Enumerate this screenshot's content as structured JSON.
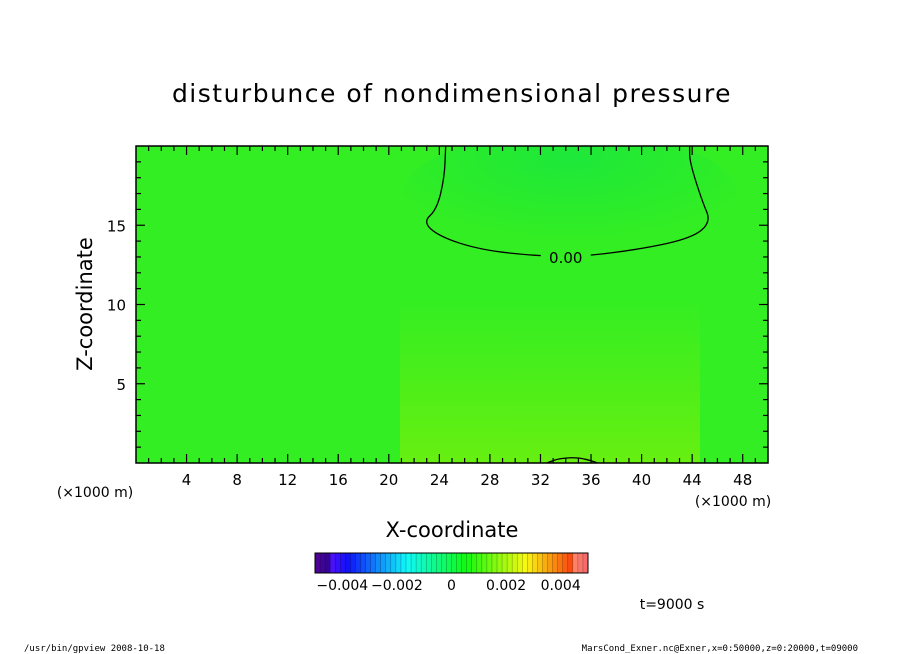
{
  "chart_data": {
    "type": "heatmap",
    "title": "disturbunce of nondimensional pressure",
    "xlabel": "X-coordinate",
    "ylabel": "Z-coordinate",
    "x_unit_left": "(×1000 m)",
    "x_unit_right": "(×1000 m)",
    "xlim": [
      0,
      50
    ],
    "ylim": [
      0,
      20
    ],
    "x_ticks": [
      4,
      8,
      12,
      16,
      20,
      24,
      28,
      32,
      36,
      40,
      44,
      48
    ],
    "y_ticks": [
      5,
      10,
      15
    ],
    "x_tick_labels": [
      "4",
      "8",
      "12",
      "16",
      "20",
      "24",
      "28",
      "32",
      "36",
      "40",
      "44",
      "48"
    ],
    "y_tick_labels": [
      "5",
      "10",
      "15"
    ],
    "contours": [
      {
        "level": 0.0,
        "label": "0.00",
        "path": [
          [
            24.5,
            20
          ],
          [
            24.4,
            18
          ],
          [
            23.8,
            16
          ],
          [
            22.7,
            15.2
          ],
          [
            24,
            14.3
          ],
          [
            27,
            13.5
          ],
          [
            31,
            13.1
          ],
          [
            35,
            13.0
          ],
          [
            40,
            13.5
          ],
          [
            44,
            14.2
          ],
          [
            45.5,
            15.2
          ],
          [
            44.8,
            16.5
          ],
          [
            43.8,
            19
          ],
          [
            43.8,
            20
          ]
        ]
      },
      {
        "level": 0.0,
        "label": "",
        "path": [
          [
            32.5,
            0
          ],
          [
            33.5,
            0.3
          ],
          [
            35,
            0.35
          ],
          [
            36.2,
            0.1
          ],
          [
            36.5,
            0
          ]
        ]
      }
    ],
    "colorbar": {
      "vmin": -0.005,
      "vmax": 0.005,
      "tick_labels": [
        "−0.004",
        "−0.002",
        "0",
        "0.002",
        "0.004"
      ],
      "tick_values": [
        -0.004,
        -0.002,
        0,
        0.002,
        0.004
      ]
    },
    "annotation": "t=9000 s"
  },
  "footer": {
    "left": "/usr/bin/gpview   2008-10-18",
    "right": "MarsCond_Exner.nc@Exner,x=0:50000,z=0:20000,t=09000"
  },
  "colors": {
    "field_background": "#33ee22",
    "field_upper_dark": "#22ee33",
    "field_lower_warm": "#66ee11",
    "frame": "#000000"
  }
}
